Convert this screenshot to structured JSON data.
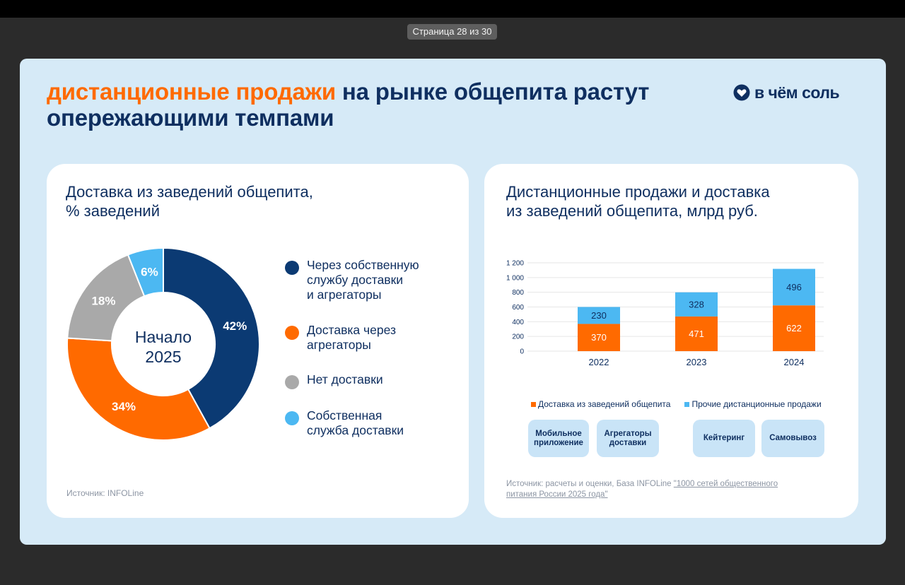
{
  "viewer": {
    "page_label": "Страница 28 из 30"
  },
  "slide": {
    "title_accent": "дистанционные продажи",
    "title_rest_line1": " на рынке общепита растут",
    "title_line2": "опережающими темпами",
    "logo_text": "в чём соль"
  },
  "left_card": {
    "title_line1": "Доставка из заведений общепита,",
    "title_line2": "% заведений",
    "center_line1": "Начало",
    "center_line2": "2025",
    "source": "Источник: INFOLine",
    "legend": [
      {
        "lines": [
          "Через собственную",
          "службу доставки",
          "и агрегаторы"
        ],
        "color": "#0b3a73"
      },
      {
        "lines": [
          "Доставка через",
          "агрегаторы"
        ],
        "color": "#ff6a00"
      },
      {
        "lines": [
          "Нет доставки"
        ],
        "color": "#a9a9a9"
      },
      {
        "lines": [
          "Собственная",
          "служба доставки"
        ],
        "color": "#4cb8f2"
      }
    ]
  },
  "right_card": {
    "title_line1": "Дистанционные продажи и доставка",
    "title_line2": "из заведений общепита, млрд руб.",
    "source_prefix": "Источник: расчеты и оценки, База INFOLine ",
    "source_link": "\"1000 сетей общественного питания России 2025 года\"",
    "chips": [
      "Мобильное приложение",
      "Агрегаторы доставки",
      "Кейтеринг",
      "Самовывоз"
    ]
  },
  "chart_data": [
    {
      "type": "pie",
      "variant": "donut",
      "categories": [
        "Через собственную службу доставки и агрегаторы",
        "Доставка через агрегаторы",
        "Нет доставки",
        "Собственная служба доставки"
      ],
      "values": [
        42,
        34,
        18,
        6
      ],
      "labels": [
        "42%",
        "34%",
        "18%",
        "6%"
      ],
      "colors": [
        "#0b3a73",
        "#ff6a00",
        "#a9a9a9",
        "#4cb8f2"
      ]
    },
    {
      "type": "bar",
      "stacked": true,
      "categories": [
        "2022",
        "2023",
        "2024"
      ],
      "series": [
        {
          "name": "Доставка из заведений общепита",
          "values": [
            370,
            471,
            622
          ],
          "color": "#ff6a00"
        },
        {
          "name": "Прочие дистанционные продажи",
          "values": [
            230,
            328,
            496
          ],
          "color": "#4cb8f2"
        }
      ],
      "ylim": [
        0,
        1200
      ],
      "yticks": [
        0,
        200,
        400,
        600,
        800,
        1000,
        1200
      ],
      "ytick_labels": [
        "0",
        "200",
        "400",
        "600",
        "800",
        "1 000",
        "1 200"
      ],
      "grid": true,
      "legend_position": "bottom"
    }
  ]
}
